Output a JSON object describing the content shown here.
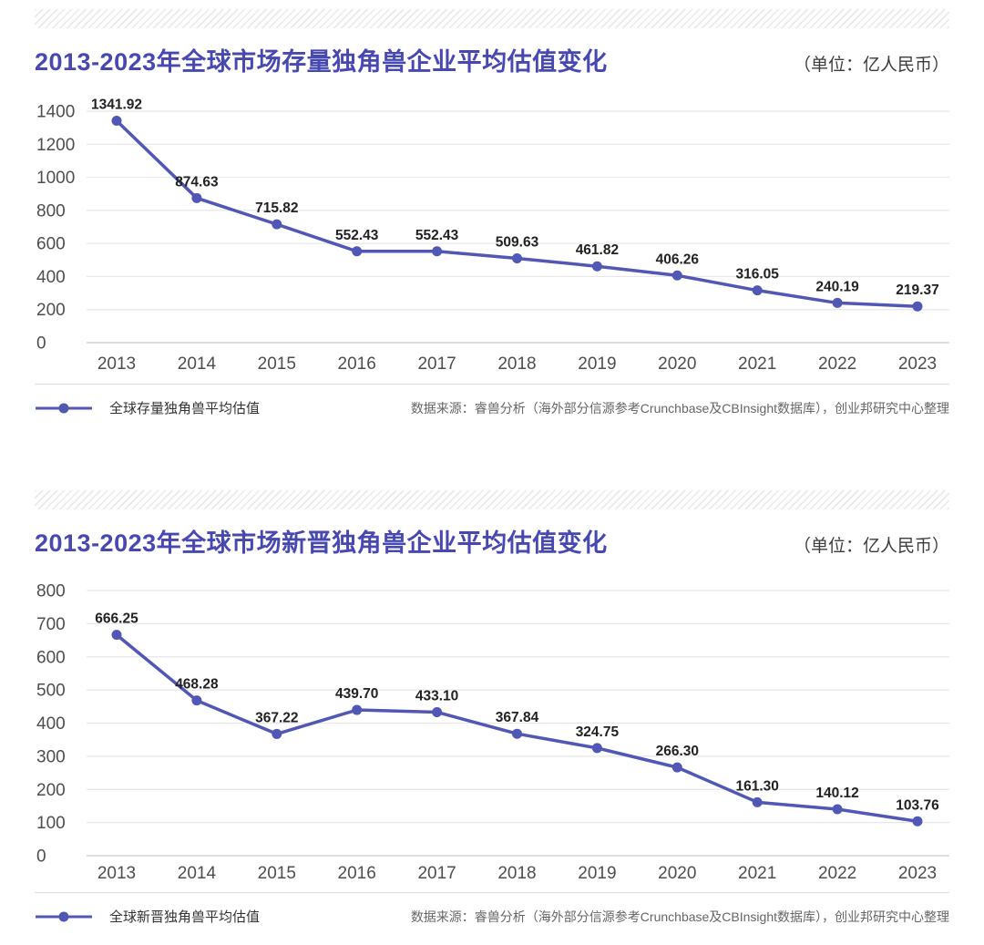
{
  "colors": {
    "title": "#4748b0",
    "line": "#5057b5",
    "grid": "#e7e7e7",
    "axis_zero_line": "#c9c9c9",
    "tick_text": "#4e4e4e",
    "data_label_text": "#222222",
    "unit_text": "#3d3d3d",
    "legend_text": "#333333",
    "source_text": "#666666"
  },
  "chart_data": [
    {
      "type": "line",
      "title": "2013-2023年全球市场存量独角兽企业平均估值变化",
      "unit": "（单位：亿人民币）",
      "categories": [
        "2013",
        "2014",
        "2015",
        "2016",
        "2017",
        "2018",
        "2019",
        "2020",
        "2021",
        "2022",
        "2023"
      ],
      "series": [
        {
          "name": "全球存量独角兽平均估值",
          "values": [
            1341.92,
            874.63,
            715.82,
            552.43,
            552.43,
            509.63,
            461.82,
            406.26,
            316.05,
            240.19,
            219.37
          ],
          "point_labels": [
            "1341.92",
            "874.63",
            "715.82",
            "552.43",
            "552.43",
            "509.63",
            "461.82",
            "406.26",
            "316.05",
            "240.19",
            "219.37"
          ]
        }
      ],
      "xlabel": "",
      "ylabel": "",
      "ylim": [
        0,
        1400
      ],
      "ytick_step": 200,
      "grid": true,
      "legend_position": "bottom-left",
      "source": "数据来源：睿兽分析（海外部分信源参考Crunchbase及CBInsight数据库），创业邦研究中心整理"
    },
    {
      "type": "line",
      "title": "2013-2023年全球市场新晋独角兽企业平均估值变化",
      "unit": "（单位：亿人民币）",
      "categories": [
        "2013",
        "2014",
        "2015",
        "2016",
        "2017",
        "2018",
        "2019",
        "2020",
        "2021",
        "2022",
        "2023"
      ],
      "series": [
        {
          "name": "全球新晋独角兽平均估值",
          "values": [
            666.25,
            468.28,
            367.22,
            439.7,
            433.1,
            367.84,
            324.75,
            266.3,
            161.3,
            140.12,
            103.76
          ],
          "point_labels": [
            "666.25",
            "468.28",
            "367.22",
            "439.70",
            "433.10",
            "367.84",
            "324.75",
            "266.30",
            "161.30",
            "140.12",
            "103.76"
          ]
        }
      ],
      "xlabel": "",
      "ylabel": "",
      "ylim": [
        0,
        800
      ],
      "ytick_step": 100,
      "grid": true,
      "legend_position": "bottom-left",
      "source": "数据来源：睿兽分析（海外部分信源参考Crunchbase及CBInsight数据库），创业邦研究中心整理"
    }
  ]
}
